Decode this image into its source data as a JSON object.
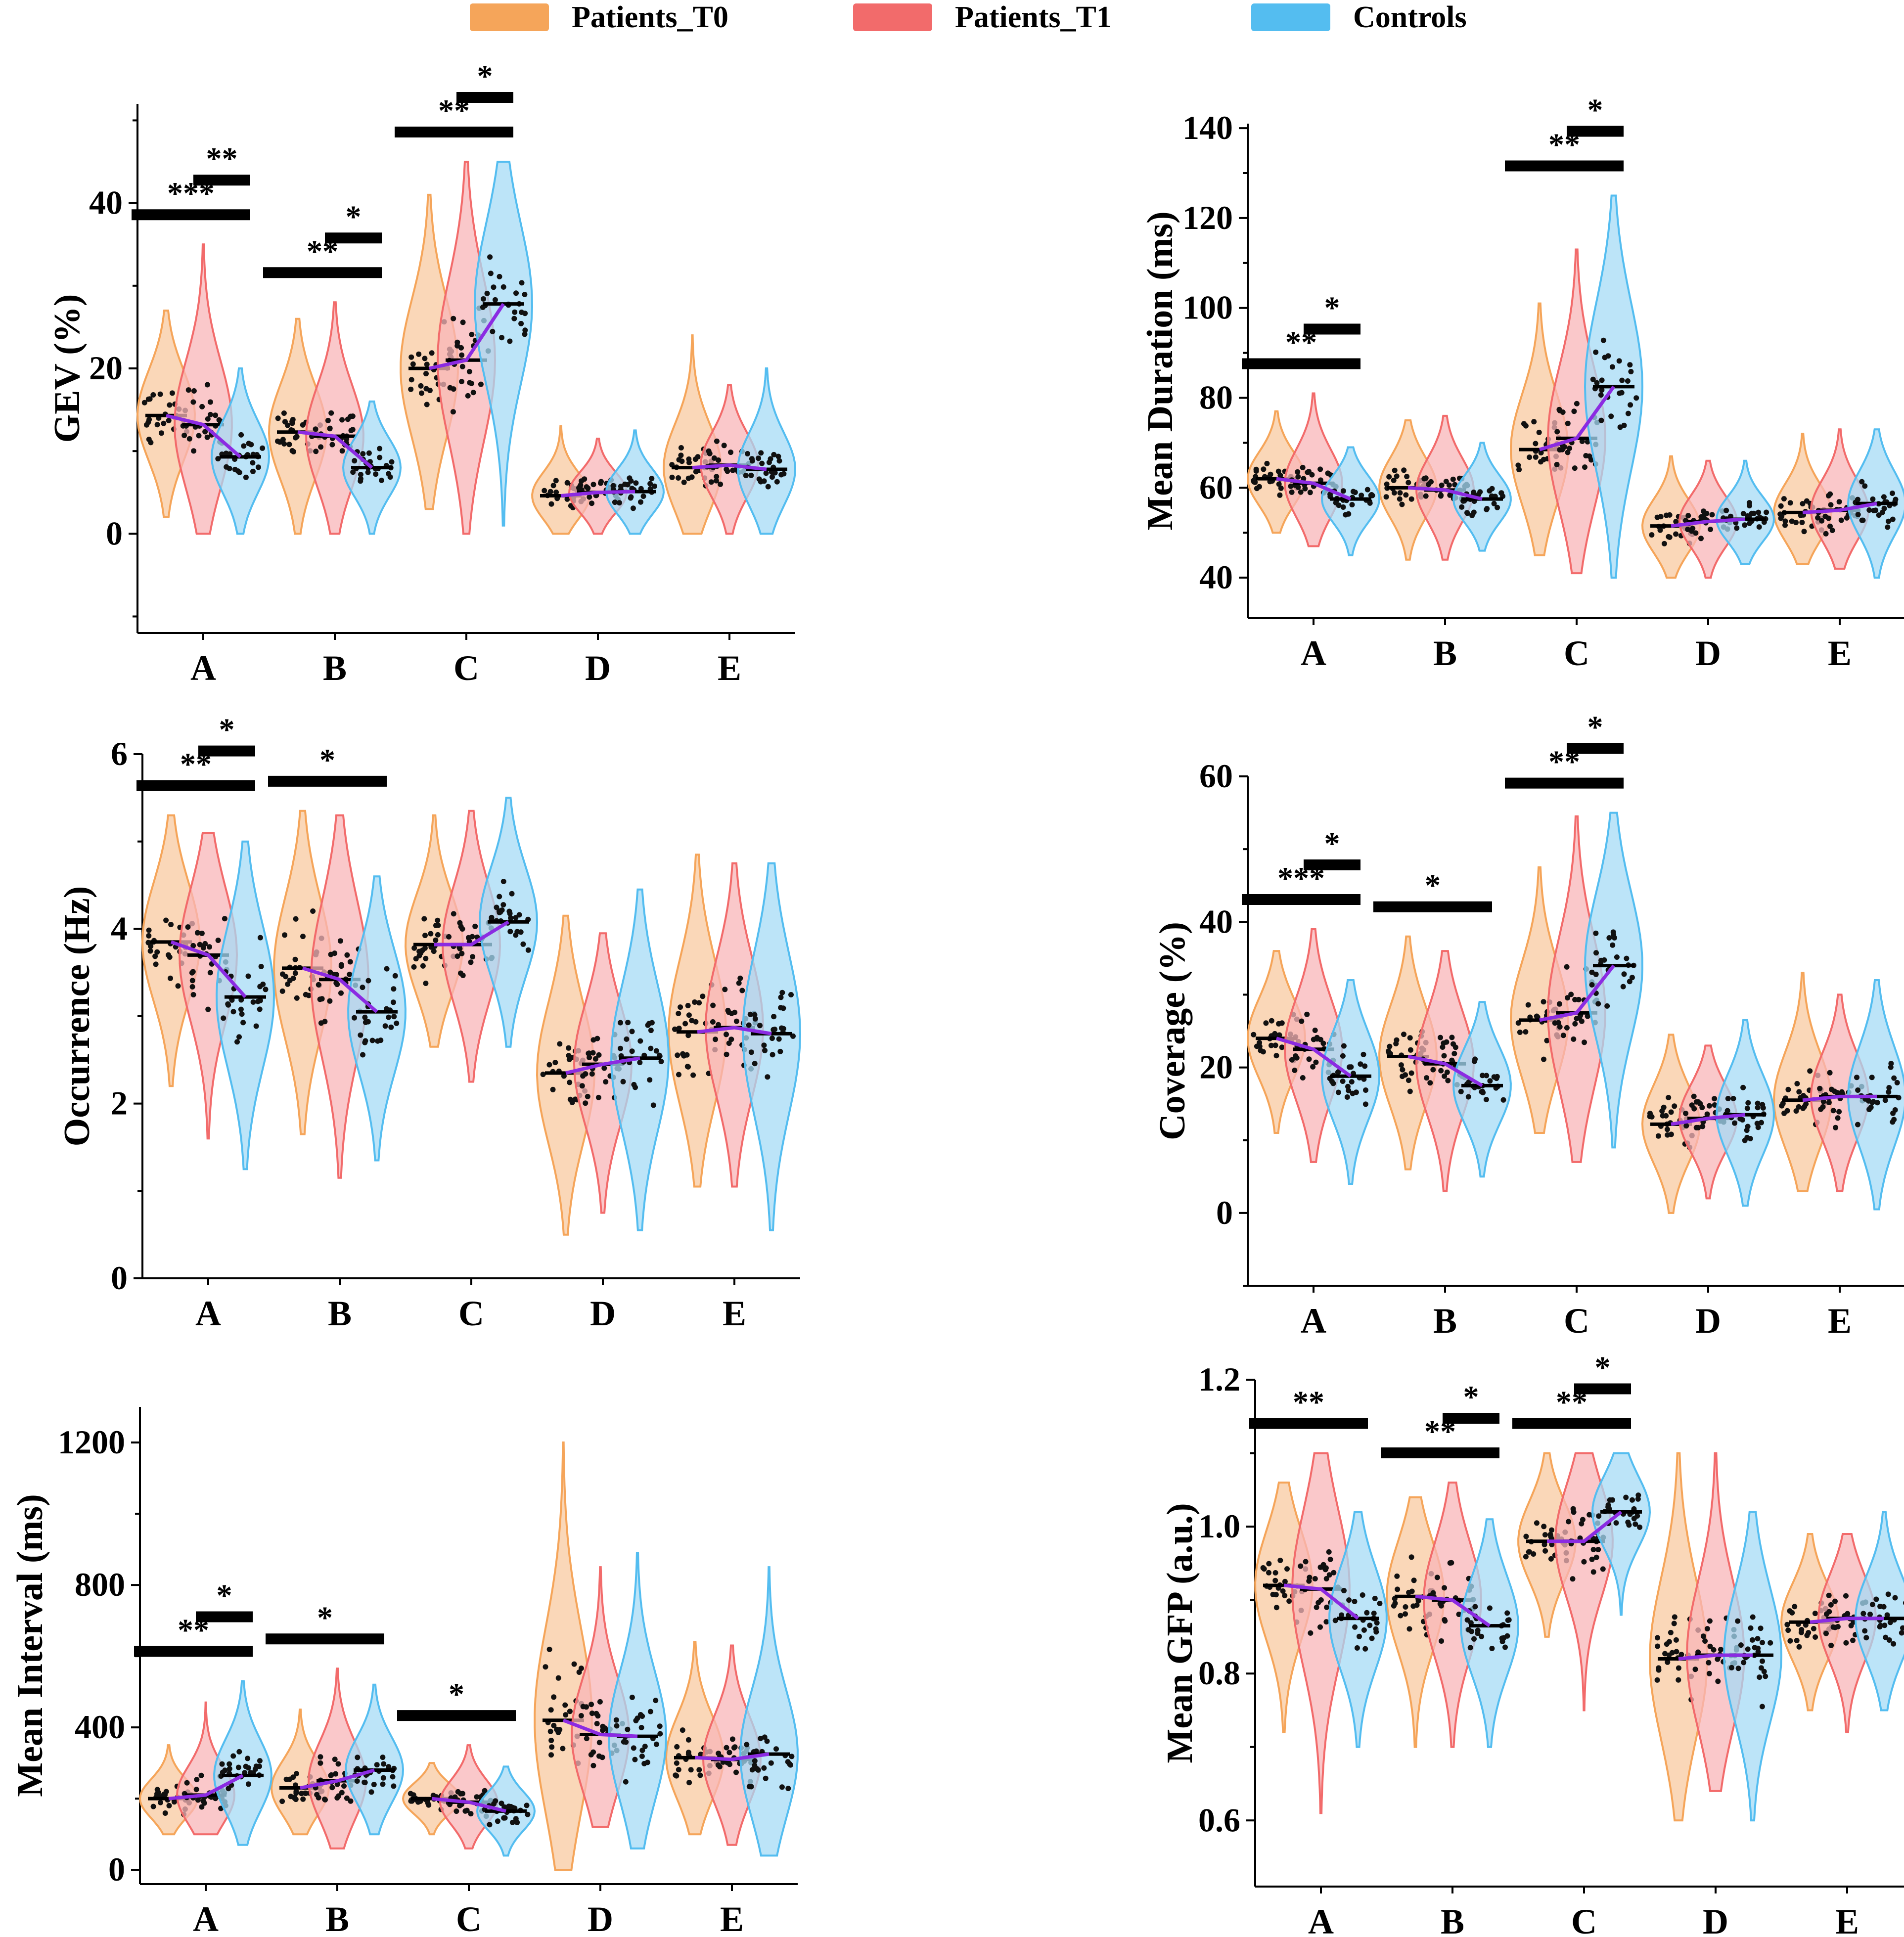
{
  "legend": {
    "items": [
      {
        "label": "Patients_T0",
        "color": "#F5A55A"
      },
      {
        "label": "Patients_T1",
        "color": "#F26B6B"
      },
      {
        "label": "Controls",
        "color": "#54BDF0"
      }
    ]
  },
  "colors": {
    "t0_fill": "#F8C9A0",
    "t0_stroke": "#F5A55A",
    "t1_fill": "#F8B6B8",
    "t1_stroke": "#F26B6B",
    "ctrl_fill": "#A6DBF5",
    "ctrl_stroke": "#54BDF0",
    "trend": "#8B2BE2"
  },
  "chart_data": [
    {
      "id": "gev",
      "type": "violin",
      "title": "",
      "xlabel": "",
      "ylabel": "GEV (%)",
      "categories": [
        "A",
        "B",
        "C",
        "D",
        "E"
      ],
      "ylim": [
        -12,
        52
      ],
      "yticks": [
        0,
        20,
        40
      ],
      "ytick_labels": [
        "0",
        "20",
        "40"
      ],
      "series": [
        {
          "name": "Patients_T0",
          "means": [
            14.3,
            12.3,
            20.0,
            4.6,
            8.0
          ],
          "ranges": [
            [
              2,
              27
            ],
            [
              0,
              26
            ],
            [
              3,
              41
            ],
            [
              0,
              13
            ],
            [
              0,
              24
            ]
          ]
        },
        {
          "name": "Patients_T1",
          "means": [
            13.2,
            11.8,
            21.0,
            5.0,
            8.3
          ],
          "ranges": [
            [
              0,
              35
            ],
            [
              0,
              28
            ],
            [
              0,
              45
            ],
            [
              0,
              11.5
            ],
            [
              0,
              18
            ]
          ]
        },
        {
          "name": "Controls",
          "means": [
            9.3,
            8.0,
            27.8,
            5.1,
            7.8
          ],
          "ranges": [
            [
              0,
              20
            ],
            [
              0,
              16
            ],
            [
              1,
              45
            ],
            [
              0,
              12.5
            ],
            [
              0,
              20
            ]
          ]
        }
      ],
      "significance": [
        {
          "category": "A",
          "from": "Patients_T0",
          "to": "Controls",
          "label": "***"
        },
        {
          "category": "A",
          "from": "Patients_T1",
          "to": "Controls",
          "label": "**"
        },
        {
          "category": "B",
          "from": "Patients_T0",
          "to": "Controls",
          "label": "**"
        },
        {
          "category": "B",
          "from": "Patients_T1",
          "to": "Controls",
          "label": "*"
        },
        {
          "category": "C",
          "from": "Patients_T0",
          "to": "Controls",
          "label": "**"
        },
        {
          "category": "C",
          "from": "Patients_T1",
          "to": "Controls",
          "label": "*"
        }
      ]
    },
    {
      "id": "duration",
      "type": "violin",
      "title": "",
      "xlabel": "",
      "ylabel": "Mean Duration (ms)",
      "categories": [
        "A",
        "B",
        "C",
        "D",
        "E"
      ],
      "ylim": [
        31,
        141
      ],
      "yticks": [
        40,
        60,
        80,
        100,
        120,
        140
      ],
      "ytick_labels": [
        "40",
        "60",
        "80",
        "100",
        "120",
        "140"
      ],
      "series": [
        {
          "name": "Patients_T0",
          "means": [
            62,
            60,
            68.5,
            51.5,
            54.5
          ],
          "ranges": [
            [
              50,
              77
            ],
            [
              44,
              75
            ],
            [
              45,
              101
            ],
            [
              40,
              67
            ],
            [
              43,
              72
            ]
          ]
        },
        {
          "name": "Patients_T1",
          "means": [
            61,
            59.5,
            71,
            52.5,
            55
          ],
          "ranges": [
            [
              47,
              81
            ],
            [
              44,
              76
            ],
            [
              41,
              113
            ],
            [
              40,
              66
            ],
            [
              42,
              73
            ]
          ]
        },
        {
          "name": "Controls",
          "means": [
            57.5,
            57.5,
            82.5,
            53,
            56.5
          ],
          "ranges": [
            [
              45,
              69
            ],
            [
              46,
              70
            ],
            [
              40,
              125
            ],
            [
              43,
              66
            ],
            [
              40,
              73
            ]
          ]
        }
      ],
      "significance": [
        {
          "category": "A",
          "from": "Patients_T0",
          "to": "Controls",
          "label": "**"
        },
        {
          "category": "A",
          "from": "Patients_T1",
          "to": "Controls",
          "label": "*"
        },
        {
          "category": "C",
          "from": "Patients_T0",
          "to": "Controls",
          "label": "**"
        },
        {
          "category": "C",
          "from": "Patients_T1",
          "to": "Controls",
          "label": "*"
        }
      ]
    },
    {
      "id": "occurrence",
      "type": "violin",
      "title": "",
      "xlabel": "",
      "ylabel": "Occurrence (Hz)",
      "categories": [
        "A",
        "B",
        "C",
        "D",
        "E"
      ],
      "ylim": [
        0,
        6
      ],
      "yticks": [
        0,
        2,
        4,
        6
      ],
      "ytick_labels": [
        "0",
        "2",
        "4",
        "6"
      ],
      "series": [
        {
          "name": "Patients_T0",
          "means": [
            3.85,
            3.55,
            3.82,
            2.35,
            2.82
          ],
          "ranges": [
            [
              2.2,
              5.3
            ],
            [
              1.65,
              5.35
            ],
            [
              2.65,
              5.3
            ],
            [
              0.5,
              4.15
            ],
            [
              1.05,
              4.85
            ]
          ]
        },
        {
          "name": "Patients_T1",
          "means": [
            3.7,
            3.42,
            3.82,
            2.45,
            2.87
          ],
          "ranges": [
            [
              1.6,
              5.1
            ],
            [
              1.15,
              5.3
            ],
            [
              2.25,
              5.35
            ],
            [
              0.75,
              3.95
            ],
            [
              1.05,
              4.75
            ]
          ]
        },
        {
          "name": "Controls",
          "means": [
            3.22,
            3.05,
            4.08,
            2.52,
            2.8
          ],
          "ranges": [
            [
              1.25,
              5.0
            ],
            [
              1.35,
              4.6
            ],
            [
              2.65,
              5.5
            ],
            [
              0.55,
              4.45
            ],
            [
              0.55,
              4.75
            ]
          ]
        }
      ],
      "significance": [
        {
          "category": "A",
          "from": "Patients_T0",
          "to": "Controls",
          "label": "**"
        },
        {
          "category": "A",
          "from": "Patients_T1",
          "to": "Controls",
          "label": "*"
        },
        {
          "category": "B",
          "from": "Patients_T0",
          "to": "Controls",
          "label": "*"
        }
      ]
    },
    {
      "id": "coverage",
      "type": "violin",
      "title": "",
      "xlabel": "",
      "ylabel": "Coverage (%)",
      "categories": [
        "A",
        "B",
        "C",
        "D",
        "E"
      ],
      "ylim": [
        -10,
        60
      ],
      "yticks": [
        0,
        20,
        40,
        60
      ],
      "ytick_labels": [
        "0",
        "20",
        "40",
        "60"
      ],
      "series": [
        {
          "name": "Patients_T0",
          "means": [
            24,
            21.5,
            26.5,
            12.2,
            15.5
          ],
          "ranges": [
            [
              11,
              36
            ],
            [
              6,
              38
            ],
            [
              11,
              47.5
            ],
            [
              0,
              24.5
            ],
            [
              3,
              33
            ]
          ]
        },
        {
          "name": "Patients_T1",
          "means": [
            22.5,
            20.5,
            27.5,
            13,
            16
          ],
          "ranges": [
            [
              7,
              39
            ],
            [
              3,
              36
            ],
            [
              7,
              54.5
            ],
            [
              2,
              23
            ],
            [
              3,
              30
            ]
          ]
        },
        {
          "name": "Controls",
          "means": [
            18.8,
            17.5,
            34,
            13.5,
            16
          ],
          "ranges": [
            [
              4,
              32
            ],
            [
              5,
              29
            ],
            [
              9,
              55
            ],
            [
              1,
              26.5
            ],
            [
              0.5,
              32
            ]
          ]
        }
      ],
      "significance": [
        {
          "category": "A",
          "from": "Patients_T0",
          "to": "Controls",
          "label": "***"
        },
        {
          "category": "A",
          "from": "Patients_T1",
          "to": "Controls",
          "label": "*"
        },
        {
          "category": "B",
          "from": "Patients_T0",
          "to": "Controls",
          "label": "*"
        },
        {
          "category": "C",
          "from": "Patients_T0",
          "to": "Controls",
          "label": "**"
        },
        {
          "category": "C",
          "from": "Patients_T1",
          "to": "Controls",
          "label": "*"
        }
      ]
    },
    {
      "id": "interval",
      "type": "violin",
      "title": "",
      "xlabel": "",
      "ylabel": "Mean Interval (ms)",
      "categories": [
        "A",
        "B",
        "C",
        "D",
        "E"
      ],
      "ylim": [
        -40,
        1300
      ],
      "yticks": [
        0,
        400,
        800,
        1200
      ],
      "ytick_labels": [
        "0",
        "400",
        "800",
        "1200"
      ],
      "series": [
        {
          "name": "Patients_T0",
          "means": [
            200,
            230,
            200,
            420,
            315
          ],
          "ranges": [
            [
              100,
              350
            ],
            [
              100,
              450
            ],
            [
              100,
              300
            ],
            [
              0,
              1200
            ],
            [
              100,
              640
            ]
          ]
        },
        {
          "name": "Patients_T1",
          "means": [
            210,
            250,
            190,
            380,
            310
          ],
          "ranges": [
            [
              100,
              470
            ],
            [
              60,
              565
            ],
            [
              60,
              350
            ],
            [
              120,
              850
            ],
            [
              70,
              630
            ]
          ]
        },
        {
          "name": "Controls",
          "means": [
            265,
            280,
            165,
            375,
            325
          ],
          "ranges": [
            [
              70,
              530
            ],
            [
              100,
              520
            ],
            [
              40,
              290
            ],
            [
              60,
              890
            ],
            [
              40,
              850
            ]
          ]
        }
      ],
      "significance": [
        {
          "category": "A",
          "from": "Patients_T0",
          "to": "Controls",
          "label": "**"
        },
        {
          "category": "A",
          "from": "Patients_T1",
          "to": "Controls",
          "label": "*"
        },
        {
          "category": "B",
          "from": "Patients_T0",
          "to": "Controls",
          "label": "*"
        },
        {
          "category": "C",
          "from": "Patients_T0",
          "to": "Controls",
          "label": "*"
        }
      ]
    },
    {
      "id": "gfp",
      "type": "violin",
      "title": "",
      "xlabel": "",
      "ylabel": "Mean GFP (a.u.)",
      "categories": [
        "A",
        "B",
        "C",
        "D",
        "E"
      ],
      "ylim": [
        0.51,
        1.2
      ],
      "yticks": [
        0.6,
        0.8,
        1.0,
        1.2
      ],
      "ytick_labels": [
        "0.6",
        "0.8",
        "1.0",
        "1.2"
      ],
      "series": [
        {
          "name": "Patients_T0",
          "means": [
            0.92,
            0.905,
            0.98,
            0.82,
            0.87
          ],
          "ranges": [
            [
              0.72,
              1.06
            ],
            [
              0.7,
              1.04
            ],
            [
              0.85,
              1.1
            ],
            [
              0.6,
              1.1
            ],
            [
              0.75,
              0.99
            ]
          ]
        },
        {
          "name": "Patients_T1",
          "means": [
            0.915,
            0.9,
            0.98,
            0.825,
            0.875
          ],
          "ranges": [
            [
              0.61,
              1.1
            ],
            [
              0.7,
              1.06
            ],
            [
              0.75,
              1.1
            ],
            [
              0.64,
              1.1
            ],
            [
              0.72,
              0.99
            ]
          ]
        },
        {
          "name": "Controls",
          "means": [
            0.875,
            0.865,
            1.02,
            0.825,
            0.875
          ],
          "ranges": [
            [
              0.7,
              1.02
            ],
            [
              0.7,
              1.01
            ],
            [
              0.88,
              1.1
            ],
            [
              0.6,
              1.02
            ],
            [
              0.75,
              1.02
            ]
          ]
        }
      ],
      "significance": [
        {
          "category": "A",
          "from": "Patients_T0",
          "to": "Controls",
          "label": "**"
        },
        {
          "category": "B",
          "from": "Patients_T0",
          "to": "Controls",
          "label": "**"
        },
        {
          "category": "B",
          "from": "Patients_T1",
          "to": "Controls",
          "label": "*"
        },
        {
          "category": "C",
          "from": "Patients_T0",
          "to": "Controls",
          "label": "**"
        },
        {
          "category": "C",
          "from": "Patients_T1",
          "to": "Controls",
          "label": "*"
        }
      ]
    }
  ]
}
